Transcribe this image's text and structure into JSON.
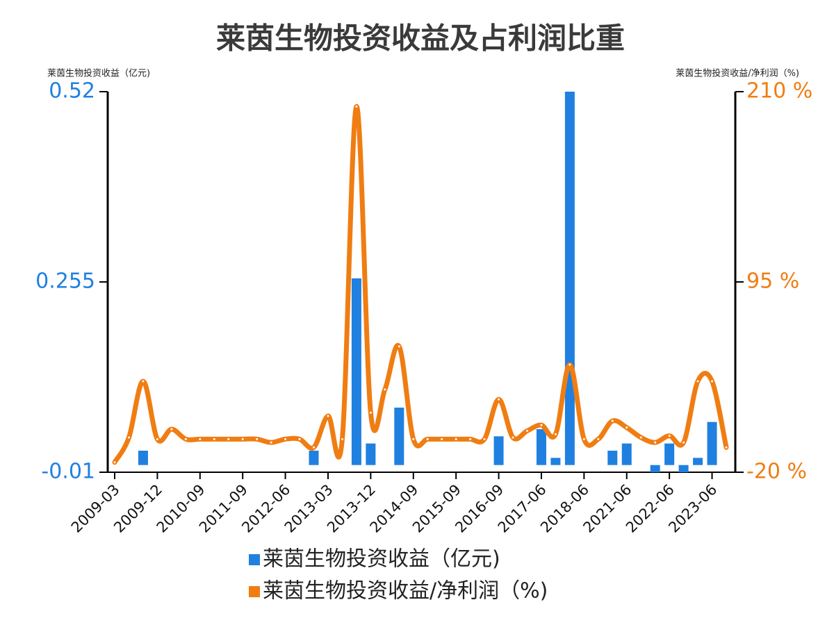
{
  "chart_data": {
    "type": "bar-line",
    "title": "莱茵生物投资收益及占利润比重",
    "y_label": "莱茵生物投资收益（亿元)",
    "y2_label": "莱茵生物投资收益/净利润（%)",
    "categories": [
      "2009-03",
      null,
      null,
      "2009-12",
      null,
      null,
      "2010-09",
      null,
      null,
      "2011-09",
      null,
      null,
      "2012-06",
      null,
      null,
      "2013-03",
      null,
      null,
      "2013-12",
      null,
      null,
      "2014-09",
      null,
      null,
      "2015-09",
      null,
      null,
      "2016-09",
      null,
      null,
      "2017-06",
      null,
      null,
      "2018-06",
      null,
      null,
      "2021-06",
      null,
      null,
      "2022-06",
      null,
      null,
      "2023-06",
      null
    ],
    "series": [
      {
        "name": "莱茵生物投资收益（亿元)",
        "type": "bar",
        "color": "#1f80e0",
        "values": [
          null,
          null,
          0.02,
          null,
          null,
          null,
          null,
          null,
          null,
          null,
          null,
          null,
          null,
          null,
          0.02,
          null,
          null,
          0.26,
          0.03,
          null,
          0.08,
          null,
          null,
          null,
          null,
          null,
          null,
          0.04,
          null,
          null,
          0.05,
          0.01,
          0.52,
          null,
          null,
          0.02,
          0.03,
          null,
          -0.01,
          0.03,
          -0.01,
          0.01,
          0.06,
          null
        ]
      },
      {
        "name": "莱茵生物投资收益/净利润（%)",
        "type": "line",
        "axis": "y2",
        "color": "#f07d12",
        "values": [
          -14,
          1,
          35,
          0,
          6,
          0,
          0,
          0,
          0,
          0,
          0,
          -2,
          0,
          0,
          -5,
          14,
          0,
          201,
          16,
          30,
          56,
          0,
          0,
          0,
          0,
          0,
          0,
          24,
          1,
          5,
          8.5,
          3,
          45,
          0,
          0,
          11,
          7,
          1,
          -2,
          2,
          -2,
          35,
          35,
          -5
        ]
      }
    ],
    "ylim": [
      -0.01,
      0.52
    ],
    "yticks": [
      -0.01,
      0.255,
      0.52
    ],
    "y2lim": [
      -20,
      210
    ],
    "y2ticks": [
      {
        "value": -20,
        "label": "-20 %"
      },
      {
        "value": 95,
        "label": "95 %"
      },
      {
        "value": 210,
        "label": "210 %"
      }
    ]
  }
}
